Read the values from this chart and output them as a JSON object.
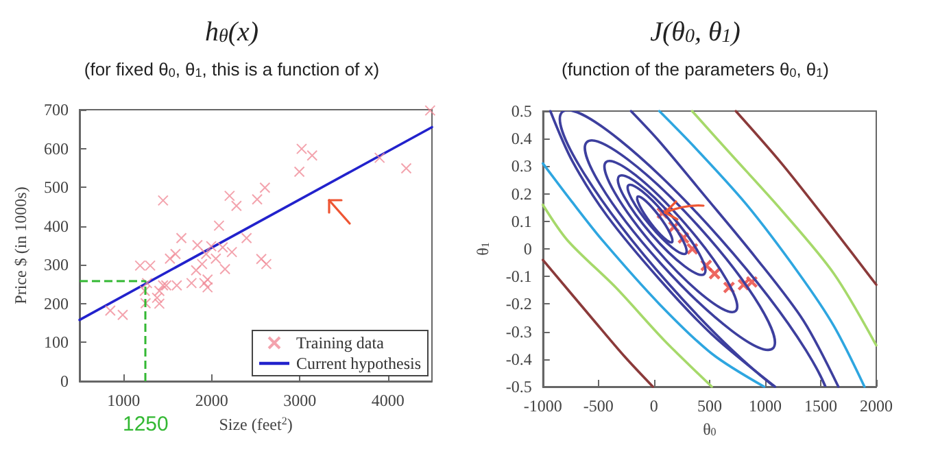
{
  "chart_data": [
    {
      "type": "scatter",
      "title": "h$_{θ}$(x)",
      "subtitle": "(for fixed θ$_{0}$, θ$_{1}$, this is a function of x)",
      "xlabel": "Size (feet$^{2}$)",
      "ylabel": "Price $ (in 1000s)",
      "xlim": [
        500,
        4500
      ],
      "xticks": [
        1000,
        2000,
        3000,
        4000
      ],
      "ylim": [
        0,
        700
      ],
      "yticks": [
        0,
        100,
        200,
        300,
        400,
        500,
        600,
        700
      ],
      "legend": "bottom right",
      "marker": "cross",
      "series": [
        {
          "name": "Training data",
          "color": "#f08c98",
          "x": [
            849,
            990,
            1187,
            1240,
            1250,
            1302,
            1266,
            1380,
            1406,
            1406,
            1448,
            1448,
            1484,
            1526,
            1589,
            1604,
            1656,
            1771,
            1823,
            1838,
            1891,
            1917,
            1953,
            1937,
            1953,
            1995,
            2047,
            2083,
            2125,
            2151,
            2203,
            2229,
            2281,
            2396,
            2516,
            2563,
            2604,
            2620,
            2995,
            3021,
            3140,
            3906,
            4208,
            4479
          ],
          "values": [
            182,
            171,
            298,
            233,
            201,
            298,
            253,
            215,
            200,
            233,
            247,
            466,
            247,
            316,
            328,
            247,
            369,
            253,
            286,
            351,
            302,
            253,
            262,
            328,
            242,
            348,
            316,
            401,
            345,
            289,
            478,
            333,
            452,
            369,
            469,
            315,
            499,
            302,
            540,
            599,
            582,
            576,
            549,
            698
          ]
        },
        {
          "name": "Current hypothesis",
          "type": "line",
          "marker": "none",
          "color": "#2222cc",
          "x": [
            500,
            4500
          ],
          "values": [
            158,
            655
          ]
        }
      ],
      "ref_lines": [
        {
          "axis": "x",
          "value": 1250,
          "label": "1250",
          "color": "#33b833",
          "line_style": "dashed"
        },
        {
          "axis": "y",
          "value": 260,
          "color": "#33b833",
          "line_style": "dashed"
        }
      ]
    },
    {
      "type": "line",
      "title": "J(θ$_{0}$, θ$_{1}$)",
      "subtitle": "(function of the parameters θ$_{0}$, θ$_{1}$)",
      "xlabel": "θ$_{0}$",
      "ylabel": "θ$_{1}$",
      "xlim": [
        -1000,
        2000
      ],
      "xticks": [
        -1000,
        -500,
        0,
        500,
        1000,
        1500,
        2000
      ],
      "ylim": [
        -0.5,
        0.5
      ],
      "yticks": [
        -0.5,
        -0.4,
        -0.3,
        -0.2,
        -0.1,
        0,
        0.1,
        0.2,
        0.3,
        0.4,
        0.5
      ],
      "marker": "none",
      "series": [
        {
          "color": "#3d3f9e",
          "x": [
            -933,
            -737,
            -423,
            48,
            520,
            1089
          ],
          "values": [
            0.5,
            0.32,
            0.12,
            -0.11,
            -0.31,
            -0.5
          ]
        },
        {
          "color": "#3d3f9e",
          "x": [
            -207,
            48,
            441,
            912,
            1344,
            1659
          ],
          "values": [
            0.5,
            0.39,
            0.2,
            -0.03,
            -0.26,
            -0.5
          ]
        },
        {
          "color": "#2ea6e0",
          "x": [
            48,
            363,
            834,
            1305,
            1619,
            1894
          ],
          "values": [
            0.5,
            0.37,
            0.16,
            -0.09,
            -0.28,
            -0.5
          ]
        },
        {
          "color": "#2ea6e0",
          "x": [
            -1000,
            -737,
            -462,
            48,
            520,
            991
          ],
          "values": [
            0.31,
            0.17,
            0.03,
            -0.2,
            -0.38,
            -0.5
          ]
        },
        {
          "color": "#a6d96a",
          "x": [
            343,
            677,
            1148,
            1619,
            2000
          ],
          "values": [
            0.5,
            0.35,
            0.14,
            -0.09,
            -0.35
          ]
        },
        {
          "color": "#a6d96a",
          "x": [
            -1000,
            -776,
            -344,
            88,
            520
          ],
          "values": [
            0.16,
            0.03,
            -0.14,
            -0.33,
            -0.5
          ]
        },
        {
          "color": "#8b3a3a",
          "x": [
            736,
            1148,
            1619,
            2000
          ],
          "values": [
            0.5,
            0.31,
            0.07,
            -0.13
          ]
        },
        {
          "color": "#8b3a3a",
          "x": [
            -1000,
            -541,
            -266,
            -10
          ],
          "values": [
            -0.04,
            -0.26,
            -0.39,
            -0.5
          ]
        },
        {
          "type": "scatter",
          "marker": "cross",
          "color": "#e8413a",
          "x": [
            75,
            180,
            265,
            345,
            470,
            545,
            675,
            805,
            880
          ],
          "values": [
            0.13,
            0.08,
            0.04,
            0,
            -0.06,
            -0.09,
            -0.14,
            -0.13,
            -0.12
          ]
        }
      ]
    }
  ]
}
